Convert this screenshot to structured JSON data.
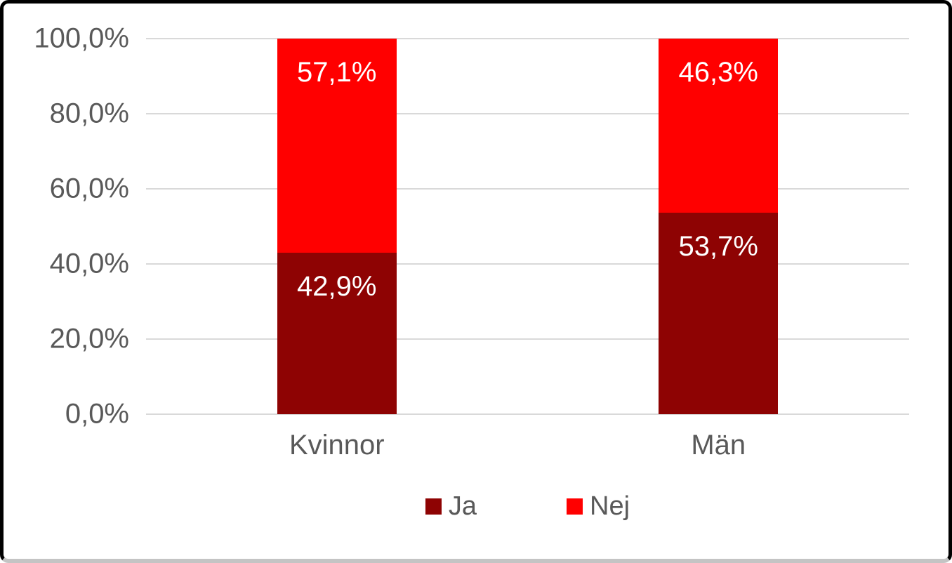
{
  "chart_data": {
    "type": "bar",
    "stacked": true,
    "title": "",
    "xlabel": "",
    "ylabel": "",
    "categories": [
      "Kvinnor",
      "Män"
    ],
    "series": [
      {
        "name": "Ja",
        "color": "#8E0303",
        "values": [
          42.9,
          53.7
        ],
        "labels": [
          "42,9%",
          "53,7%"
        ]
      },
      {
        "name": "Nej",
        "color": "#FF0000",
        "values": [
          57.1,
          46.3
        ],
        "labels": [
          "57,1%",
          "46,3%"
        ]
      }
    ],
    "y_axis": {
      "min": 0,
      "max": 100,
      "step": 20,
      "tick_labels": [
        "0,0%",
        "20,0%",
        "40,0%",
        "60,0%",
        "80,0%",
        "100,0%"
      ]
    },
    "grid": "horizontal",
    "gridline_color": "#d9d9d9",
    "axis_text_color": "#595959",
    "data_label_color": "#ffffff",
    "data_label_position": "inside-end",
    "legend": {
      "position": "bottom",
      "entries": [
        "Ja",
        "Nej"
      ]
    },
    "frame_border_color": "#000000"
  }
}
